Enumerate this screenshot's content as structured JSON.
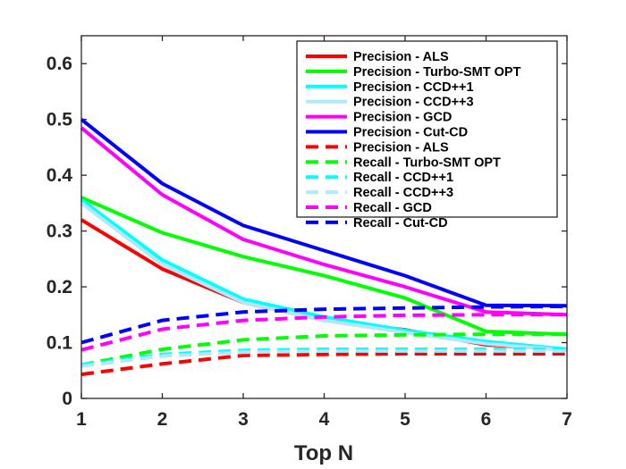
{
  "chart_data": {
    "type": "line",
    "title": "",
    "xlabel": "Top N",
    "ylabel": "",
    "xlim": [
      1,
      7
    ],
    "ylim": [
      0,
      0.65
    ],
    "xticks": [
      "1",
      "2",
      "3",
      "4",
      "5",
      "6",
      "7"
    ],
    "yticks": [
      "0",
      "0.1",
      "0.2",
      "0.3",
      "0.4",
      "0.5",
      "0.6"
    ],
    "x": [
      1,
      2,
      3,
      4,
      5,
      6,
      7
    ],
    "legend_position": "top-right",
    "series": [
      {
        "name": "Precision - ALS",
        "color": "#ff0000",
        "style": "solid",
        "values": [
          0.32,
          0.232,
          0.172,
          0.14,
          0.123,
          0.096,
          0.088
        ]
      },
      {
        "name": "Precision - Turbo-SMT OPT",
        "color": "#00ff00",
        "style": "solid",
        "values": [
          0.36,
          0.297,
          0.254,
          0.22,
          0.18,
          0.12,
          0.115
        ]
      },
      {
        "name": "Precision - CCD++1",
        "color": "#00ffff",
        "style": "solid",
        "values": [
          0.356,
          0.248,
          0.178,
          0.146,
          0.122,
          0.102,
          0.088
        ]
      },
      {
        "name": "Precision - CCD++3",
        "color": "#b0e8ff",
        "style": "solid",
        "values": [
          0.35,
          0.24,
          0.172,
          0.14,
          0.118,
          0.098,
          0.086
        ]
      },
      {
        "name": "Precision - GCD",
        "color": "#ff00ff",
        "style": "solid",
        "values": [
          0.485,
          0.365,
          0.285,
          0.24,
          0.2,
          0.155,
          0.15
        ]
      },
      {
        "name": "Precision - Cut-CD",
        "color": "#0000ff",
        "style": "solid",
        "values": [
          0.5,
          0.385,
          0.31,
          0.265,
          0.22,
          0.167,
          0.166
        ]
      },
      {
        "name": "Precision - ALS",
        "color": "#ff0000",
        "style": "dashed",
        "values": [
          0.043,
          0.062,
          0.077,
          0.079,
          0.08,
          0.08,
          0.08
        ]
      },
      {
        "name": "Recall - Turbo-SMT OPT",
        "color": "#00ff00",
        "style": "dashed",
        "values": [
          0.06,
          0.088,
          0.105,
          0.112,
          0.114,
          0.115,
          0.115
        ]
      },
      {
        "name": "Recall - CCD++1",
        "color": "#00ffff",
        "style": "dashed",
        "values": [
          0.06,
          0.079,
          0.086,
          0.088,
          0.088,
          0.088,
          0.088
        ]
      },
      {
        "name": "Recall - CCD++3",
        "color": "#b0e8ff",
        "style": "dashed",
        "values": [
          0.058,
          0.076,
          0.083,
          0.085,
          0.085,
          0.085,
          0.085
        ]
      },
      {
        "name": "Recall - GCD",
        "color": "#ff00ff",
        "style": "dashed",
        "values": [
          0.087,
          0.124,
          0.14,
          0.146,
          0.149,
          0.15,
          0.15
        ]
      },
      {
        "name": "Recall - Cut-CD",
        "color": "#0000ff",
        "style": "dashed",
        "values": [
          0.1,
          0.14,
          0.155,
          0.16,
          0.162,
          0.164,
          0.165
        ]
      }
    ]
  }
}
